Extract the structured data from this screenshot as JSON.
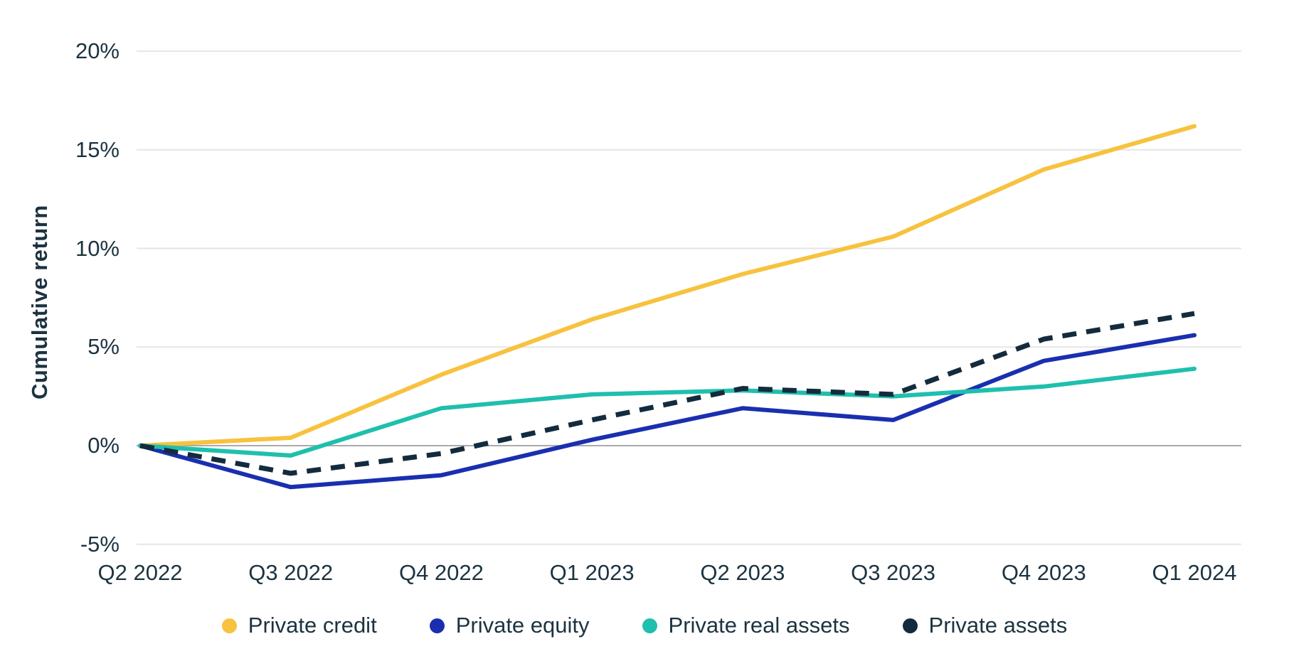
{
  "colors": {
    "grid": "#E6E6E6",
    "zero_line": "#AAAAAA",
    "text": "#1C3340"
  },
  "chart_data": {
    "type": "line",
    "title": "",
    "xlabel": "",
    "ylabel": "Cumulative return",
    "ylim": [
      -5,
      20
    ],
    "grid": "horizontal",
    "legend_position": "bottom",
    "y_ticks": [
      {
        "value": 20,
        "label": "20%"
      },
      {
        "value": 15,
        "label": "15%"
      },
      {
        "value": 10,
        "label": "10%"
      },
      {
        "value": 5,
        "label": "5%"
      },
      {
        "value": 0,
        "label": "0%"
      },
      {
        "value": -5,
        "label": "-5%"
      }
    ],
    "categories": [
      "Q2 2022",
      "Q3 2022",
      "Q4 2022",
      "Q1 2023",
      "Q2 2023",
      "Q3 2023",
      "Q4 2023",
      "Q1 2024"
    ],
    "series": [
      {
        "name": "Private credit",
        "color": "#F7C23E",
        "style": "solid",
        "values": [
          0,
          0.4,
          3.6,
          6.4,
          8.7,
          10.6,
          14.0,
          16.2
        ]
      },
      {
        "name": "Private equity",
        "color": "#1A2FAF",
        "style": "solid",
        "values": [
          0,
          -2.1,
          -1.5,
          0.3,
          1.9,
          1.3,
          4.3,
          5.6
        ]
      },
      {
        "name": "Private real assets",
        "color": "#1FBFAD",
        "style": "solid",
        "values": [
          0,
          -0.5,
          1.9,
          2.6,
          2.8,
          2.5,
          3.0,
          3.9
        ]
      },
      {
        "name": "Private assets",
        "color": "#132B3D",
        "style": "dashed",
        "values": [
          0,
          -1.4,
          -0.4,
          1.3,
          2.9,
          2.6,
          5.4,
          6.7
        ]
      }
    ]
  }
}
